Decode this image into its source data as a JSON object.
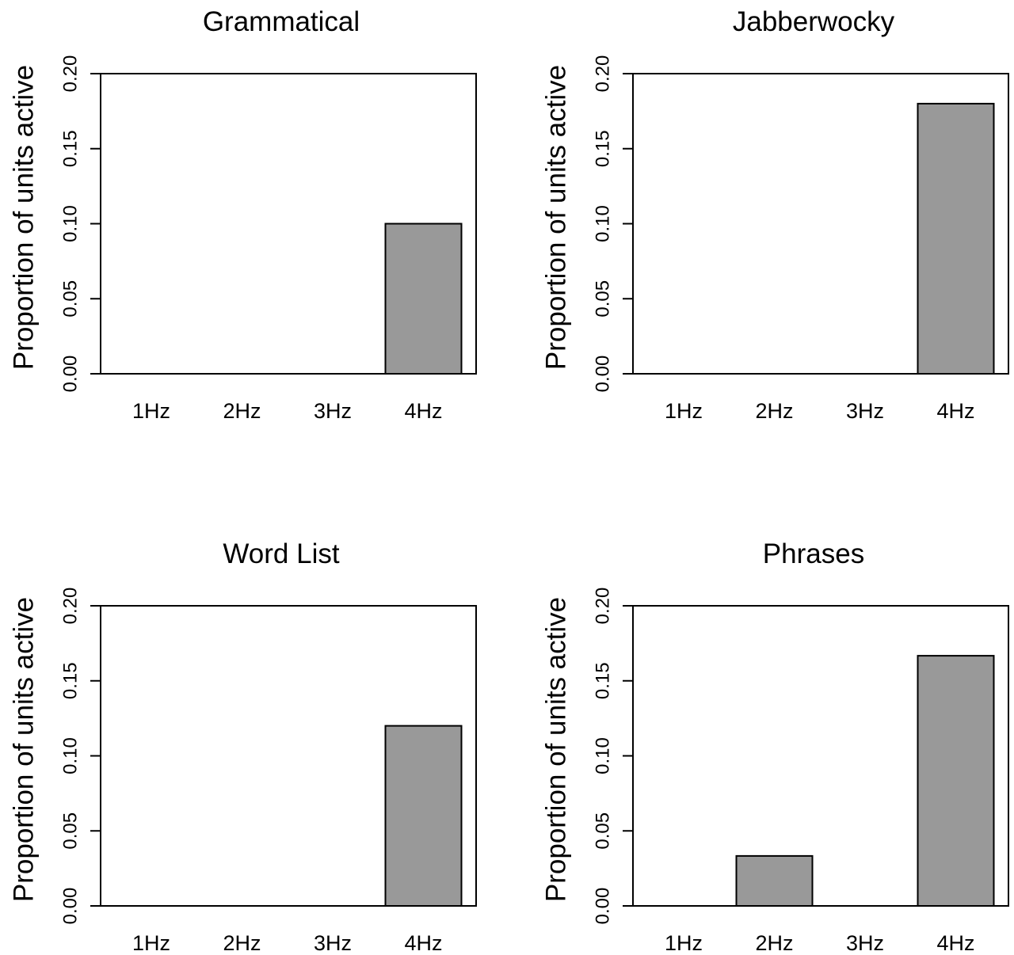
{
  "chart_data": [
    {
      "type": "bar",
      "title": "Grammatical",
      "ylabel": "Proportion of units active",
      "xlabel": "",
      "categories": [
        "1Hz",
        "2Hz",
        "3Hz",
        "4Hz"
      ],
      "values": [
        0,
        0,
        0,
        0.1
      ],
      "ylim": [
        0,
        0.2
      ],
      "yticks": [
        "0.00",
        "0.05",
        "0.10",
        "0.15",
        "0.20"
      ],
      "bar_color": "#999999",
      "grid": false,
      "legend": "none"
    },
    {
      "type": "bar",
      "title": "Jabberwocky",
      "ylabel": "Proportion of units active",
      "xlabel": "",
      "categories": [
        "1Hz",
        "2Hz",
        "3Hz",
        "4Hz"
      ],
      "values": [
        0,
        0,
        0,
        0.18
      ],
      "ylim": [
        0,
        0.2
      ],
      "yticks": [
        "0.00",
        "0.05",
        "0.10",
        "0.15",
        "0.20"
      ],
      "bar_color": "#999999",
      "grid": false,
      "legend": "none"
    },
    {
      "type": "bar",
      "title": "Word List",
      "ylabel": "Proportion of units active",
      "xlabel": "",
      "categories": [
        "1Hz",
        "2Hz",
        "3Hz",
        "4Hz"
      ],
      "values": [
        0,
        0,
        0,
        0.12
      ],
      "ylim": [
        0,
        0.2
      ],
      "yticks": [
        "0.00",
        "0.05",
        "0.10",
        "0.15",
        "0.20"
      ],
      "bar_color": "#999999",
      "grid": false,
      "legend": "none"
    },
    {
      "type": "bar",
      "title": "Phrases",
      "ylabel": "Proportion of units active",
      "xlabel": "",
      "categories": [
        "1Hz",
        "2Hz",
        "3Hz",
        "4Hz"
      ],
      "values": [
        0,
        0.0333,
        0,
        0.1667
      ],
      "ylim": [
        0,
        0.2
      ],
      "yticks": [
        "0.00",
        "0.05",
        "0.10",
        "0.15",
        "0.20"
      ],
      "bar_color": "#999999",
      "grid": false,
      "legend": "none"
    }
  ]
}
